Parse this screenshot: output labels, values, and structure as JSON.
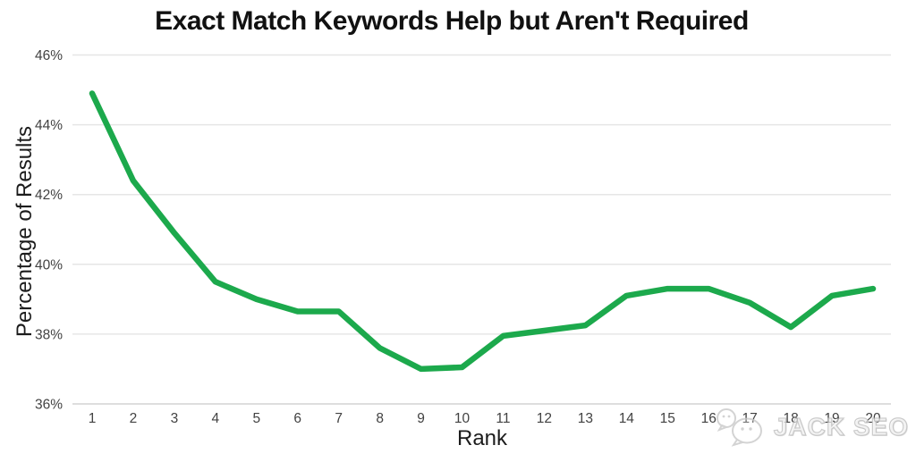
{
  "chart_data": {
    "type": "line",
    "title": "Exact Match Keywords Help but Aren't Required",
    "xlabel": "Rank",
    "ylabel": "Percentage of Results",
    "x": [
      1,
      2,
      3,
      4,
      5,
      6,
      7,
      8,
      9,
      10,
      11,
      12,
      13,
      14,
      15,
      16,
      17,
      18,
      19,
      20
    ],
    "series": [
      {
        "name": "Percentage of Results",
        "values": [
          44.9,
          42.4,
          40.9,
          39.5,
          39.0,
          38.65,
          38.65,
          37.6,
          37.0,
          37.05,
          37.95,
          38.1,
          38.25,
          39.1,
          39.3,
          39.3,
          38.9,
          38.2,
          39.1,
          39.3
        ],
        "color": "#1ca94c"
      }
    ],
    "ylim": [
      36,
      46
    ],
    "yticks": [
      36,
      38,
      40,
      42,
      44,
      46
    ],
    "ytick_labels": [
      "36%",
      "38%",
      "40%",
      "42%",
      "44%",
      "46%"
    ],
    "grid": true,
    "legend": false,
    "grid_color": "#e6e6e6",
    "baseline_color": "#d4d4d4",
    "tick_label_color": "#424242",
    "line_width": 6.5
  },
  "watermark": {
    "text": "JACK SEO",
    "icon": "chat-bubbles-icon"
  }
}
